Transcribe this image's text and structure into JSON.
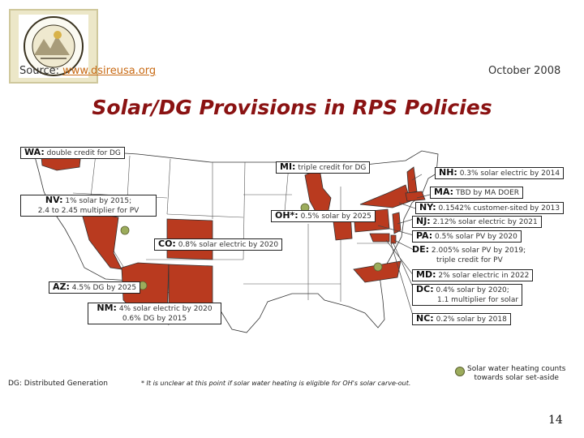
{
  "header": {
    "source_prefix": "Source: ",
    "source_link": "www.dsireusa.org",
    "date": "October 2008",
    "title": "Solar/DG Provisions in RPS Policies"
  },
  "states": {
    "wa": {
      "code": "WA:",
      "text": "double credit for DG"
    },
    "mi": {
      "code": "MI:",
      "text": "triple credit for DG"
    },
    "nh": {
      "code": "NH:",
      "text": "0.3% solar electric by 2014"
    },
    "ma": {
      "code": "MA:",
      "text": "TBD by MA DOER"
    },
    "nv": {
      "code": "NV:",
      "text": "1% solar by 2015;",
      "line2": "2.4 to 2.45 multiplier for PV"
    },
    "ny": {
      "code": "NY:",
      "text": "0.1542% customer-sited by 2013"
    },
    "oh": {
      "code": "OH*:",
      "text": "0.5% solar by 2025"
    },
    "nj": {
      "code": "NJ:",
      "text": "2.12% solar electric by 2021"
    },
    "pa": {
      "code": "PA:",
      "text": "0.5% solar PV by 2020"
    },
    "co": {
      "code": "CO:",
      "text": "0.8% solar electric by 2020"
    },
    "de": {
      "code": "DE:",
      "text": "2.005% solar PV by 2019;",
      "line2": "triple credit for PV"
    },
    "md": {
      "code": "MD:",
      "text": "2% solar electric in 2022"
    },
    "az": {
      "code": "AZ:",
      "text": "4.5% DG by 2025"
    },
    "dc": {
      "code": "DC:",
      "text": "0.4% solar by 2020;",
      "line2": "1.1 multiplier for solar"
    },
    "nm": {
      "code": "NM:",
      "text": "4% solar electric by 2020",
      "line2": "0.6% DG by 2015"
    },
    "nc": {
      "code": "NC:",
      "text": "0.2% solar by 2018"
    }
  },
  "footer": {
    "dg_note": "DG:  Distributed Generation",
    "oh_note": "* It is unclear at this point if solar water heating is eligible for OH's solar carve-out.",
    "legend_text_1": "Solar water heating counts",
    "legend_text_2": "towards solar set-aside",
    "page_number": "14"
  },
  "colors": {
    "policy_fill": "#b93a1f",
    "swh_dot": "#9cac5c",
    "title": "#8a1212",
    "link": "#c86a14"
  }
}
